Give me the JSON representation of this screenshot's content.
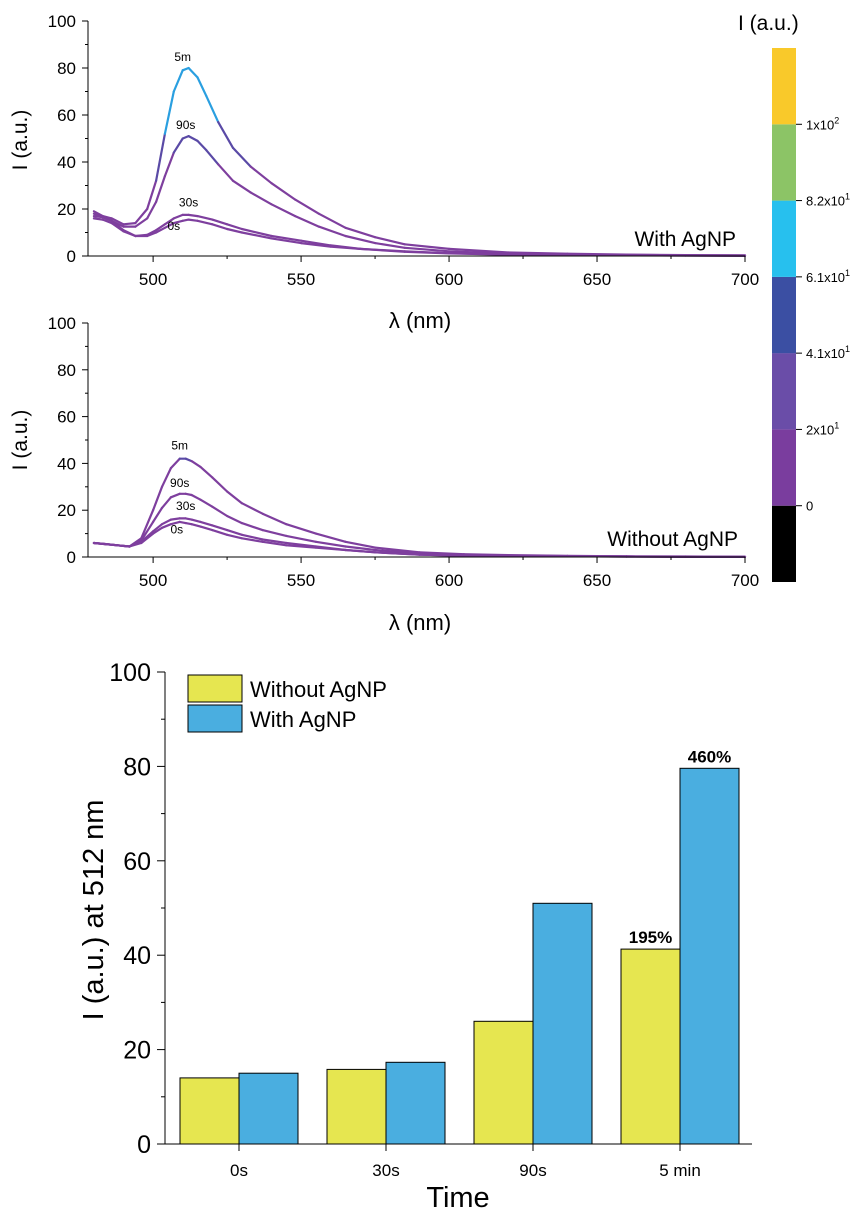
{
  "chart_data": [
    {
      "type": "line",
      "panel": "top",
      "xlabel": "λ (nm)",
      "ylabel": "I (a.u.)",
      "xlim": [
        478,
        700
      ],
      "ylim": [
        0,
        100
      ],
      "xticks": [
        500,
        550,
        600,
        650,
        700
      ],
      "yticks": [
        0,
        20,
        40,
        60,
        80,
        100
      ],
      "annotation": "With AgNP",
      "series": [
        {
          "name": "5m",
          "label_x": 510,
          "label_y": 83,
          "x": [
            480,
            483,
            486,
            490,
            494,
            498,
            501,
            504,
            507,
            510,
            512,
            515,
            518,
            522,
            527,
            533,
            540,
            548,
            556,
            565,
            575,
            585,
            600,
            620,
            640,
            660,
            680,
            700
          ],
          "y": [
            19,
            17,
            16,
            13.5,
            14,
            20,
            32,
            52,
            70,
            79,
            80,
            76,
            68,
            57,
            46,
            38,
            31,
            24,
            18,
            12,
            8,
            5,
            3,
            1.5,
            1,
            0.6,
            0.4,
            0.3
          ]
        },
        {
          "name": "90s",
          "label_x": 511,
          "label_y": 54,
          "x": [
            480,
            483,
            486,
            490,
            494,
            498,
            501,
            504,
            507,
            510,
            512,
            515,
            518,
            522,
            527,
            533,
            540,
            548,
            556,
            565,
            575,
            585,
            600,
            620,
            640,
            660,
            680,
            700
          ],
          "y": [
            18,
            16.5,
            15,
            12.5,
            12.5,
            16,
            23,
            34,
            44,
            50,
            51,
            49,
            45,
            39,
            32,
            27,
            22,
            17,
            12.5,
            8.5,
            5.5,
            3.5,
            2,
            1,
            0.7,
            0.5,
            0.3,
            0.2
          ]
        },
        {
          "name": "30s",
          "label_x": 512,
          "label_y": 21,
          "x": [
            480,
            483,
            486,
            490,
            494,
            498,
            501,
            504,
            507,
            510,
            512,
            515,
            520,
            525,
            530,
            540,
            550,
            560,
            570,
            585,
            600,
            620,
            650,
            680,
            700
          ],
          "y": [
            17,
            16.5,
            15,
            11,
            8.5,
            9,
            11,
            13.5,
            16,
            17.5,
            17.5,
            17,
            15.5,
            13.5,
            11.5,
            8.5,
            6.5,
            4.5,
            3,
            2,
            1.2,
            0.7,
            0.4,
            0.2,
            0.1
          ]
        },
        {
          "name": "0s",
          "label_x": 507,
          "label_y": 11,
          "x": [
            480,
            483,
            486,
            490,
            494,
            498,
            501,
            504,
            507,
            510,
            512,
            515,
            520,
            525,
            530,
            540,
            550,
            560,
            570,
            585,
            600,
            620,
            650,
            680,
            700
          ],
          "y": [
            16,
            15.5,
            14,
            10.5,
            8.5,
            8.5,
            10,
            12,
            14,
            15,
            15.5,
            15,
            13.5,
            11.5,
            10,
            7.5,
            5.5,
            4,
            3,
            1.8,
            1.1,
            0.6,
            0.3,
            0.2,
            0.1
          ]
        }
      ]
    },
    {
      "type": "line",
      "panel": "middle",
      "xlabel": "λ (nm)",
      "ylabel": "I (a.u.)",
      "xlim": [
        478,
        700
      ],
      "ylim": [
        0,
        100
      ],
      "xticks": [
        500,
        550,
        600,
        650,
        700
      ],
      "yticks": [
        0,
        20,
        40,
        60,
        80,
        100
      ],
      "annotation": "Without AgNP",
      "series": [
        {
          "name": "5m",
          "label_x": 509,
          "label_y": 46,
          "x": [
            480,
            484,
            488,
            492,
            496,
            500,
            503,
            506,
            509,
            511,
            513,
            516,
            520,
            525,
            530,
            537,
            545,
            555,
            565,
            575,
            590,
            605,
            620,
            640,
            660,
            680,
            700
          ],
          "y": [
            6,
            5.5,
            5,
            4.5,
            8,
            20,
            30,
            38,
            42,
            42,
            41,
            38.5,
            34,
            28,
            23,
            18.5,
            14,
            10,
            6.5,
            4,
            2,
            1.2,
            0.8,
            0.5,
            0.3,
            0.2,
            0.1
          ]
        },
        {
          "name": "90s",
          "label_x": 509,
          "label_y": 30,
          "x": [
            480,
            484,
            488,
            492,
            496,
            500,
            503,
            506,
            509,
            511,
            513,
            516,
            520,
            525,
            530,
            537,
            545,
            555,
            565,
            575,
            590,
            605,
            620,
            640,
            660,
            680,
            700
          ],
          "y": [
            6,
            5.5,
            5,
            4.5,
            7,
            15,
            21,
            25.5,
            27,
            27,
            26.5,
            24.5,
            21.5,
            17.5,
            14.5,
            11.5,
            9,
            6.5,
            4.5,
            3,
            1.5,
            0.9,
            0.6,
            0.4,
            0.2,
            0.1,
            0.1
          ]
        },
        {
          "name": "30s",
          "label_x": 511,
          "label_y": 20,
          "x": [
            480,
            484,
            488,
            492,
            496,
            500,
            503,
            506,
            509,
            511,
            513,
            516,
            520,
            525,
            530,
            537,
            545,
            555,
            565,
            575,
            590,
            605,
            620,
            640,
            660,
            680,
            700
          ],
          "y": [
            6,
            5.5,
            5,
            4.5,
            6.5,
            11,
            14,
            16,
            16.5,
            16.5,
            16,
            15,
            13.5,
            11.5,
            9.5,
            7.5,
            6,
            4.5,
            3,
            2,
            1,
            0.6,
            0.4,
            0.3,
            0.2,
            0.1,
            0.1
          ]
        },
        {
          "name": "0s",
          "label_x": 508,
          "label_y": 10,
          "x": [
            480,
            484,
            488,
            492,
            496,
            500,
            503,
            506,
            509,
            511,
            513,
            516,
            520,
            525,
            530,
            537,
            545,
            555,
            565,
            575,
            590,
            605,
            620,
            640,
            660,
            680,
            700
          ],
          "y": [
            6,
            5.5,
            5,
            4.5,
            6,
            10,
            12.5,
            14,
            15,
            14.5,
            14,
            13,
            11.5,
            9.5,
            8,
            6.5,
            5,
            4,
            3,
            2,
            1,
            0.6,
            0.4,
            0.3,
            0.2,
            0.1,
            0.1
          ]
        }
      ]
    },
    {
      "type": "bar",
      "panel": "bottom",
      "xlabel": "Time",
      "ylabel": "I (a.u.) at 512 nm",
      "ylim": [
        0,
        100
      ],
      "yticks": [
        0,
        20,
        40,
        60,
        80,
        100
      ],
      "categories": [
        "0s",
        "30s",
        "90s",
        "5 min"
      ],
      "legend_position": "top-left",
      "series": [
        {
          "name": "Without AgNP",
          "color": "#e6e650",
          "values": [
            14,
            15.8,
            26,
            41.3
          ],
          "labels": [
            "",
            "",
            "",
            "195%"
          ]
        },
        {
          "name": "With AgNP",
          "color": "#4aaee0",
          "values": [
            15,
            17.3,
            51,
            79.6
          ],
          "labels": [
            "",
            "",
            "",
            "460%"
          ]
        }
      ]
    }
  ],
  "colorbar": {
    "title": "I (a.u.)",
    "segment_colors": [
      "#000000",
      "#7a3d9e",
      "#6a4da8",
      "#3b4fa3",
      "#27c0ee",
      "#8cc466",
      "#f9c92a"
    ],
    "tick_labels": [
      "0",
      "2x10^1",
      "4.1x10^1",
      "6.1x10^1",
      "8.2x10^1",
      "1x10^2"
    ]
  },
  "colors": {
    "curve_low": "#7e3f9e",
    "curve_mid": "#5a4aa6",
    "curve_high": "#2a9fe0"
  }
}
